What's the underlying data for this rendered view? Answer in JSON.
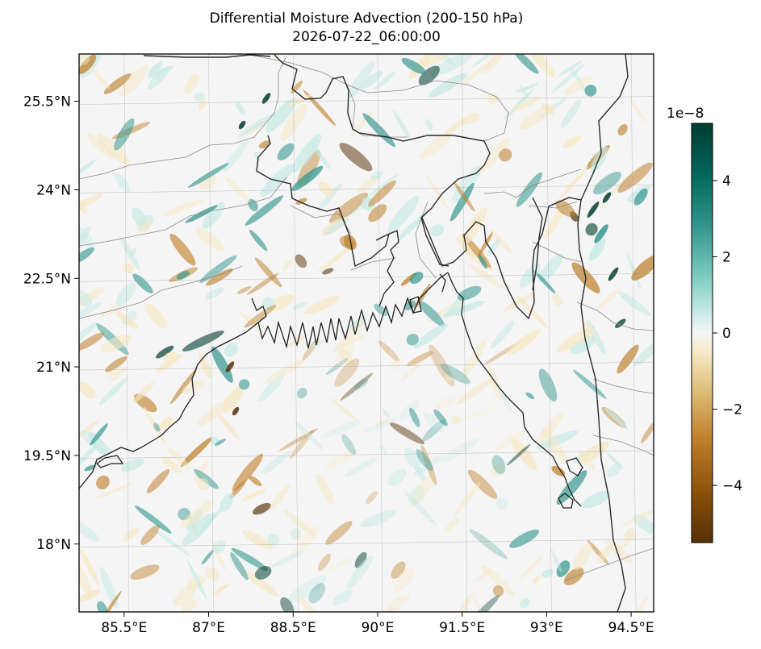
{
  "chart_data": {
    "type": "heatmap",
    "title": "Differential Moisture Advection (200-150 hPa)",
    "subtitle": "2026-07-22_06:00:00",
    "x_ticks": [
      "85.5°E",
      "87°E",
      "88.5°E",
      "90°E",
      "91.5°E",
      "93°E",
      "94.5°E"
    ],
    "x_tick_values": [
      85.5,
      87,
      88.5,
      90,
      91.5,
      93,
      94.5
    ],
    "y_ticks": [
      "25.5°N",
      "24°N",
      "22.5°N",
      "21°N",
      "19.5°N",
      "18°N"
    ],
    "y_tick_values": [
      25.5,
      24,
      22.5,
      21,
      19.5,
      18
    ],
    "xlim": [
      84.7,
      94.9
    ],
    "ylim": [
      16.85,
      26.3
    ],
    "grid": true,
    "colorbar": {
      "colormap": "BrBG",
      "range": [
        -5.5,
        5.5
      ],
      "ticks": [
        "4",
        "2",
        "0",
        "−2",
        "−4"
      ],
      "tick_values": [
        4,
        2,
        0,
        -2,
        -4
      ],
      "offset_label": "1e−8"
    },
    "colors": {
      "brown_dark": "#543005",
      "brown": "#bf812d",
      "tan": "#f6e8c3",
      "neutral": "#f5f5f5",
      "teal_light": "#c7eae5",
      "teal": "#35978f",
      "teal_dark": "#003c30"
    }
  }
}
